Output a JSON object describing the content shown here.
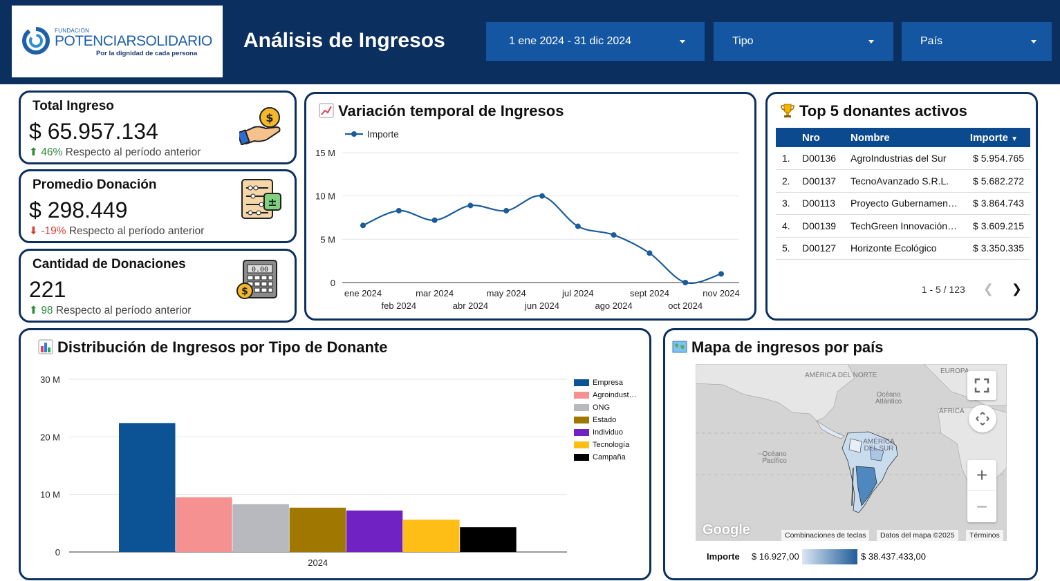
{
  "header": {
    "logo": {
      "fundacion": "FUNDACIÓN",
      "name_part1": "POTENCIAR",
      "name_part2": "SOLIDARIO",
      "tagline": "Por la dignidad de cada persona"
    },
    "title": "Análisis de Ingresos",
    "filters": {
      "date_range": "1 ene 2024 - 31 dic 2024",
      "tipo": "Tipo",
      "pais": "País"
    }
  },
  "kpis": {
    "total_ingreso": {
      "title": "Total Ingreso",
      "value": "$ 65.957.134",
      "delta": "46%",
      "delta_text": "Respecto al período anterior",
      "direction": "up"
    },
    "promedio_donacion": {
      "title": "Promedio Donación",
      "value": "$ 298.449",
      "delta": "-19%",
      "delta_text": "Respecto al período anterior",
      "direction": "down"
    },
    "cantidad_donaciones": {
      "title": "Cantidad de Donaciones",
      "value": "221",
      "delta": "98",
      "delta_text": "Respecto al período anterior",
      "direction": "up"
    }
  },
  "line_section": {
    "title": "Variación temporal de Ingresos",
    "icon": "chart-increasing-icon"
  },
  "top5": {
    "title": "Top 5 donantes activos",
    "icon": "trophy-icon",
    "columns": {
      "nro": "Nro",
      "nombre": "Nombre",
      "importe": "Importe"
    },
    "rows": [
      {
        "rank": "1.",
        "nro": "D00136",
        "nombre": "AgroIndustrias del Sur",
        "importe": "$ 5.954.765"
      },
      {
        "rank": "2.",
        "nro": "D00137",
        "nombre": "TecnoAvanzado S.R.L.",
        "importe": "$ 5.682.272"
      },
      {
        "rank": "3.",
        "nro": "D00113",
        "nombre": "Proyecto Gubernamen…",
        "importe": "$ 3.864.743"
      },
      {
        "rank": "4.",
        "nro": "D00139",
        "nombre": "TechGreen Innovación…",
        "importe": "$ 3.609.215"
      },
      {
        "rank": "5.",
        "nro": "D00127",
        "nombre": "Horizonte Ecológico",
        "importe": "$ 3.350.335"
      }
    ],
    "pagination": "1 - 5 / 123"
  },
  "bar_section": {
    "title": "Distribución de Ingresos por Tipo de Donante",
    "icon": "bar-chart-icon"
  },
  "map_section": {
    "title": "Mapa de ingresos por país",
    "icon": "world-map-icon",
    "labels": {
      "north_america": "AMÉRICA DEL NORTE",
      "europe": "EUROPA",
      "africa": "ÁFRICA",
      "south_america": "AMÉRICA DEL SUR",
      "atlantic": "Océano Atlántico",
      "pacific": "Océano Pacífico"
    },
    "footer": {
      "brand": "Google",
      "shortcuts": "Combinaciones de teclas",
      "map_data": "Datos del mapa ©2025",
      "terms": "Términos"
    },
    "scale": {
      "label": "Importe",
      "min": "$ 16.927,00",
      "max": "$ 38.437.433,00",
      "color_min": "#dbe7f3",
      "color_max": "#1f5c99"
    }
  },
  "colors": {
    "header_bg": "#0b2f5e",
    "filter_bg": "#1556a3",
    "accent": "#0b4a8f",
    "up": "#2e8b3a",
    "down": "#d6403a"
  },
  "chart_data": [
    {
      "type": "line",
      "title": "Variación temporal de Ingresos",
      "legend": [
        "Importe"
      ],
      "x": [
        "ene 2024",
        "feb 2024",
        "mar 2024",
        "abr 2024",
        "may 2024",
        "jun 2024",
        "jul 2024",
        "ago 2024",
        "sept 2024",
        "oct 2024",
        "nov 2024"
      ],
      "series": [
        {
          "name": "Importe",
          "values": [
            6.6,
            8.3,
            7.2,
            8.9,
            8.3,
            10.0,
            6.5,
            5.5,
            3.4,
            0.0,
            1.0
          ]
        }
      ],
      "y_unit": "M",
      "ylim": [
        0,
        15
      ],
      "yticks": [
        "0",
        "5 M",
        "10 M",
        "15 M"
      ],
      "grid": true,
      "color": "#1a5b98"
    },
    {
      "type": "bar",
      "title": "Distribución de Ingresos por Tipo de Donante",
      "categories": [
        "2024"
      ],
      "series": [
        {
          "name": "Empresa",
          "label": "Empresa",
          "values": [
            22.4
          ],
          "color": "#0b5394"
        },
        {
          "name": "Agroindustria",
          "label": "Agroindust…",
          "values": [
            9.5
          ],
          "color": "#f59191"
        },
        {
          "name": "ONG",
          "label": "ONG",
          "values": [
            8.3
          ],
          "color": "#b7b9be"
        },
        {
          "name": "Estado",
          "label": "Estado",
          "values": [
            7.7
          ],
          "color": "#a07700"
        },
        {
          "name": "Individuo",
          "label": "Individuo",
          "values": [
            7.2
          ],
          "color": "#7122c2"
        },
        {
          "name": "Tecnología",
          "label": "Tecnología",
          "values": [
            5.6
          ],
          "color": "#ffbe16"
        },
        {
          "name": "Campaña",
          "label": "Campaña",
          "values": [
            4.3
          ],
          "color": "#000000"
        }
      ],
      "y_unit": "M",
      "ylim": [
        0,
        30
      ],
      "yticks": [
        "0",
        "10 M",
        "20 M",
        "30 M"
      ],
      "grid": true,
      "legend_position": "right"
    }
  ]
}
